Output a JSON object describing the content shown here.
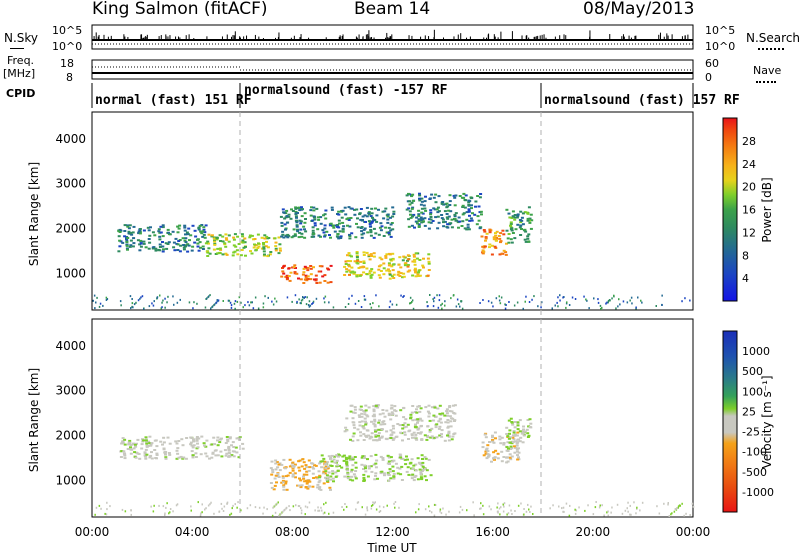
{
  "header": {
    "station": "King Salmon (fitACF)",
    "beam": "Beam 14",
    "date": "08/May/2013"
  },
  "side_labels": {
    "nsky": "N.Sky",
    "nsearch": "N.Search",
    "freq": "Freq.",
    "freq_unit": "[MHz]",
    "nave": "Nave",
    "cpid": "CPID"
  },
  "noise_axis": {
    "left_top": "10^5",
    "left_bottom": "10^0",
    "right_top": "10^5",
    "right_bottom": "10^0"
  },
  "freq_axis": {
    "left_top": "18",
    "left_bottom": "8",
    "right_top": "60",
    "right_bottom": "0"
  },
  "cpid_segments": [
    {
      "label": "normal (fast) 151 RF",
      "start_hour": 0,
      "end_hour": 6
    },
    {
      "label": "normalsound (fast) -157 RF",
      "start_hour": 6,
      "end_hour": 18
    },
    {
      "label": "normalsound (fast) 157 RF",
      "start_hour": 18,
      "end_hour": 24
    }
  ],
  "colorbars": {
    "power": {
      "label": "Power [dB]",
      "ticks": [
        "28",
        "24",
        "20",
        "16",
        "12",
        "8",
        "4"
      ],
      "colors": [
        "#e8141a",
        "#f04a10",
        "#f47f12",
        "#f6b21a",
        "#e6d21c",
        "#7ecf2a",
        "#3ca24a",
        "#2e8a60",
        "#236a92",
        "#1c46c2",
        "#1414e6"
      ]
    },
    "velocity": {
      "label": "Velocity [m s⁻¹]",
      "ticks": [
        "1000",
        "500",
        "100",
        "25",
        "-25",
        "-100",
        "-500",
        "-1000"
      ],
      "colors": [
        "#1a2eb8",
        "#1e52b0",
        "#2a7a8a",
        "#34a25a",
        "#7ecf2a",
        "#c8c8c0",
        "#c8c8c0",
        "#f4a21a",
        "#f07814",
        "#e84a10",
        "#e81414"
      ]
    }
  },
  "chart_data": [
    {
      "type": "heatmap",
      "title": "Power",
      "xlabel": "Time UT",
      "ylabel": "Slant Range [km]",
      "xlim": [
        0,
        24
      ],
      "ylim": [
        180,
        4600
      ],
      "x_ticks": [
        "00:00",
        "04:00",
        "08:00",
        "12:00",
        "16:00",
        "20:00",
        "00:00"
      ],
      "y_ticks": [
        "1000",
        "2000",
        "3000",
        "4000"
      ],
      "colorbar_range": [
        0,
        30
      ],
      "regions": [
        {
          "t": [
            1.0,
            4.5
          ],
          "r": [
            1500,
            2100
          ],
          "value": 8
        },
        {
          "t": [
            4.5,
            7.5
          ],
          "r": [
            1400,
            1900
          ],
          "value": 16
        },
        {
          "t": [
            7.5,
            9.5
          ],
          "r": [
            800,
            1200
          ],
          "value": 26
        },
        {
          "t": [
            7.5,
            12.0
          ],
          "r": [
            1800,
            2500
          ],
          "value": 8
        },
        {
          "t": [
            10.0,
            13.5
          ],
          "r": [
            900,
            1500
          ],
          "value": 18
        },
        {
          "t": [
            12.5,
            15.5
          ],
          "r": [
            2000,
            2800
          ],
          "value": 8
        },
        {
          "t": [
            15.5,
            16.5
          ],
          "r": [
            1400,
            2000
          ],
          "value": 22
        },
        {
          "t": [
            16.5,
            17.5
          ],
          "r": [
            1700,
            2500
          ],
          "value": 10
        }
      ]
    },
    {
      "type": "heatmap",
      "title": "Velocity",
      "xlabel": "Time UT",
      "ylabel": "Slant Range [km]",
      "xlim": [
        0,
        24
      ],
      "ylim": [
        180,
        4600
      ],
      "x_ticks": [
        "00:00",
        "04:00",
        "08:00",
        "12:00",
        "16:00",
        "20:00",
        "00:00"
      ],
      "y_ticks": [
        "1000",
        "2000",
        "3000",
        "4000"
      ],
      "colorbar_range": [
        -1000,
        1000
      ],
      "regions": [
        {
          "t": [
            1.0,
            6.0
          ],
          "r": [
            1500,
            2000
          ],
          "value": 0
        },
        {
          "t": [
            7.0,
            9.5
          ],
          "r": [
            800,
            1500
          ],
          "value": -300
        },
        {
          "t": [
            9.0,
            13.5
          ],
          "r": [
            1000,
            1600
          ],
          "value": 100
        },
        {
          "t": [
            10.0,
            14.5
          ],
          "r": [
            1900,
            2700
          ],
          "value": 0
        },
        {
          "t": [
            15.5,
            17.0
          ],
          "r": [
            1400,
            2100
          ],
          "value": -200
        },
        {
          "t": [
            16.5,
            17.5
          ],
          "r": [
            1700,
            2400
          ],
          "value": 80
        }
      ]
    }
  ]
}
